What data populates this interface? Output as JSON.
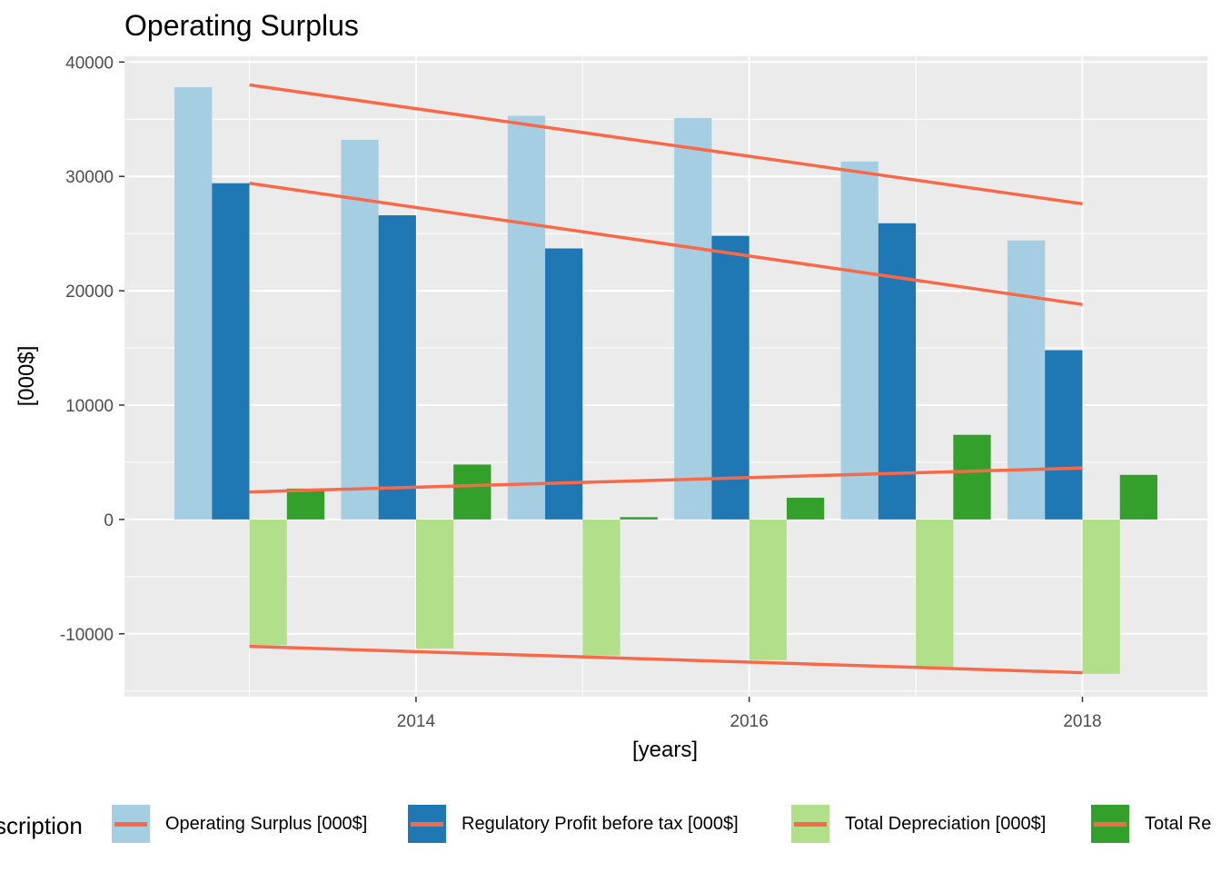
{
  "chart_data": {
    "type": "bar",
    "title": "Operating Surplus",
    "xlabel": "[years]",
    "ylabel": "[000$]",
    "x": [
      2013,
      2014,
      2015,
      2016,
      2017,
      2018
    ],
    "xlim": [
      2012.25,
      2018.75
    ],
    "ylim": [
      -15500,
      40500
    ],
    "x_ticks": [
      2014,
      2016,
      2018
    ],
    "y_ticks": [
      -10000,
      0,
      10000,
      20000,
      30000,
      40000
    ],
    "grid": true,
    "series": [
      {
        "name": "Operating Surplus [000$]",
        "color": "#a6cee3",
        "values": [
          37800,
          33200,
          35300,
          35100,
          31300,
          24400
        ]
      },
      {
        "name": "Regulatory Profit before tax [000$]",
        "color": "#1f78b4",
        "values": [
          29400,
          26600,
          23700,
          24800,
          25900,
          14800
        ]
      },
      {
        "name": "Total Depreciation [000$]",
        "color": "#b2df8a",
        "values": [
          -11000,
          -11300,
          -11900,
          -12300,
          -12900,
          -13500
        ]
      },
      {
        "name": "Total Re",
        "color": "#33a02c",
        "values": [
          2700,
          4800,
          200,
          1900,
          7400,
          3900
        ]
      }
    ],
    "trend_lines": {
      "color": "#f8694a",
      "x_range": [
        2013,
        2018
      ],
      "lines": [
        {
          "start": 38000,
          "end": 27600
        },
        {
          "start": 29400,
          "end": 18800
        },
        {
          "start": 2400,
          "end": 4500
        },
        {
          "start": -11100,
          "end": -13400
        }
      ]
    },
    "legend": {
      "position": "bottom",
      "title": "Description"
    }
  },
  "legend_title_visible": "scription"
}
